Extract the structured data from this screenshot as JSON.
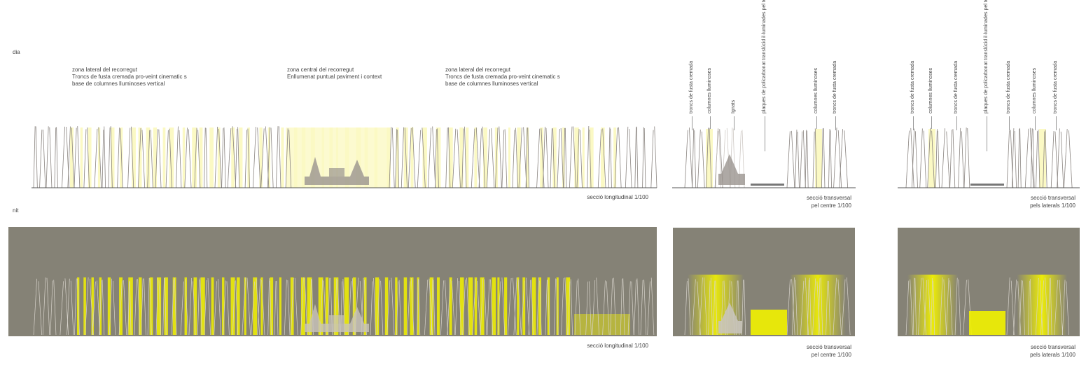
{
  "headers": {
    "day": "dia",
    "night": "nit"
  },
  "long_section": {
    "zones": [
      {
        "line1": "zona lateral del recorregut",
        "line2": "Troncs de fusta cremada pro-veint cinematic s",
        "line3": "base de columnes lluminoses vertical"
      },
      {
        "line1": "zona central del recorregut",
        "line2": "Enllumenat puntual paviment i context"
      },
      {
        "line1": "zona lateral del recorregut",
        "line2": "Troncs de fusta cremada pro-veint cinematic s",
        "line3": "base de columnes lluminoses vertical"
      }
    ],
    "caption_day": "secció longitudinal 1/100",
    "caption_night": "secció longitudinal 1/100"
  },
  "cross_center": {
    "labels": [
      "troncs de fusta cremada",
      "columnes lluminoses",
      "Ignats",
      "plaques de policarbonat translúcid il·luminades pel terra",
      "columnes lluminoses",
      "troncs de fusta cremada"
    ],
    "caption_day": [
      "secció transversal",
      "pel centre 1/100"
    ],
    "caption_night": [
      "secció transversal",
      "pel centre 1/100"
    ]
  },
  "cross_lateral": {
    "labels": [
      "troncs de fusta cremada",
      "columnes lluminoses",
      "troncs de fusta cremada",
      "plaques de policarbonat translúcid il·luminades pel terra",
      "troncs de fusta cremada",
      "columnes lluminoses",
      "troncs de fusta cremada"
    ],
    "caption_day": [
      "secció transversal",
      "pels laterals 1/100"
    ],
    "caption_night": [
      "secció transversal",
      "pels laterals 1/100"
    ]
  },
  "colors": {
    "night_bg": "#858276",
    "yellow": "#f2f200",
    "pale_yellow": "#fbf9c4",
    "trunk": "#8a8480"
  }
}
